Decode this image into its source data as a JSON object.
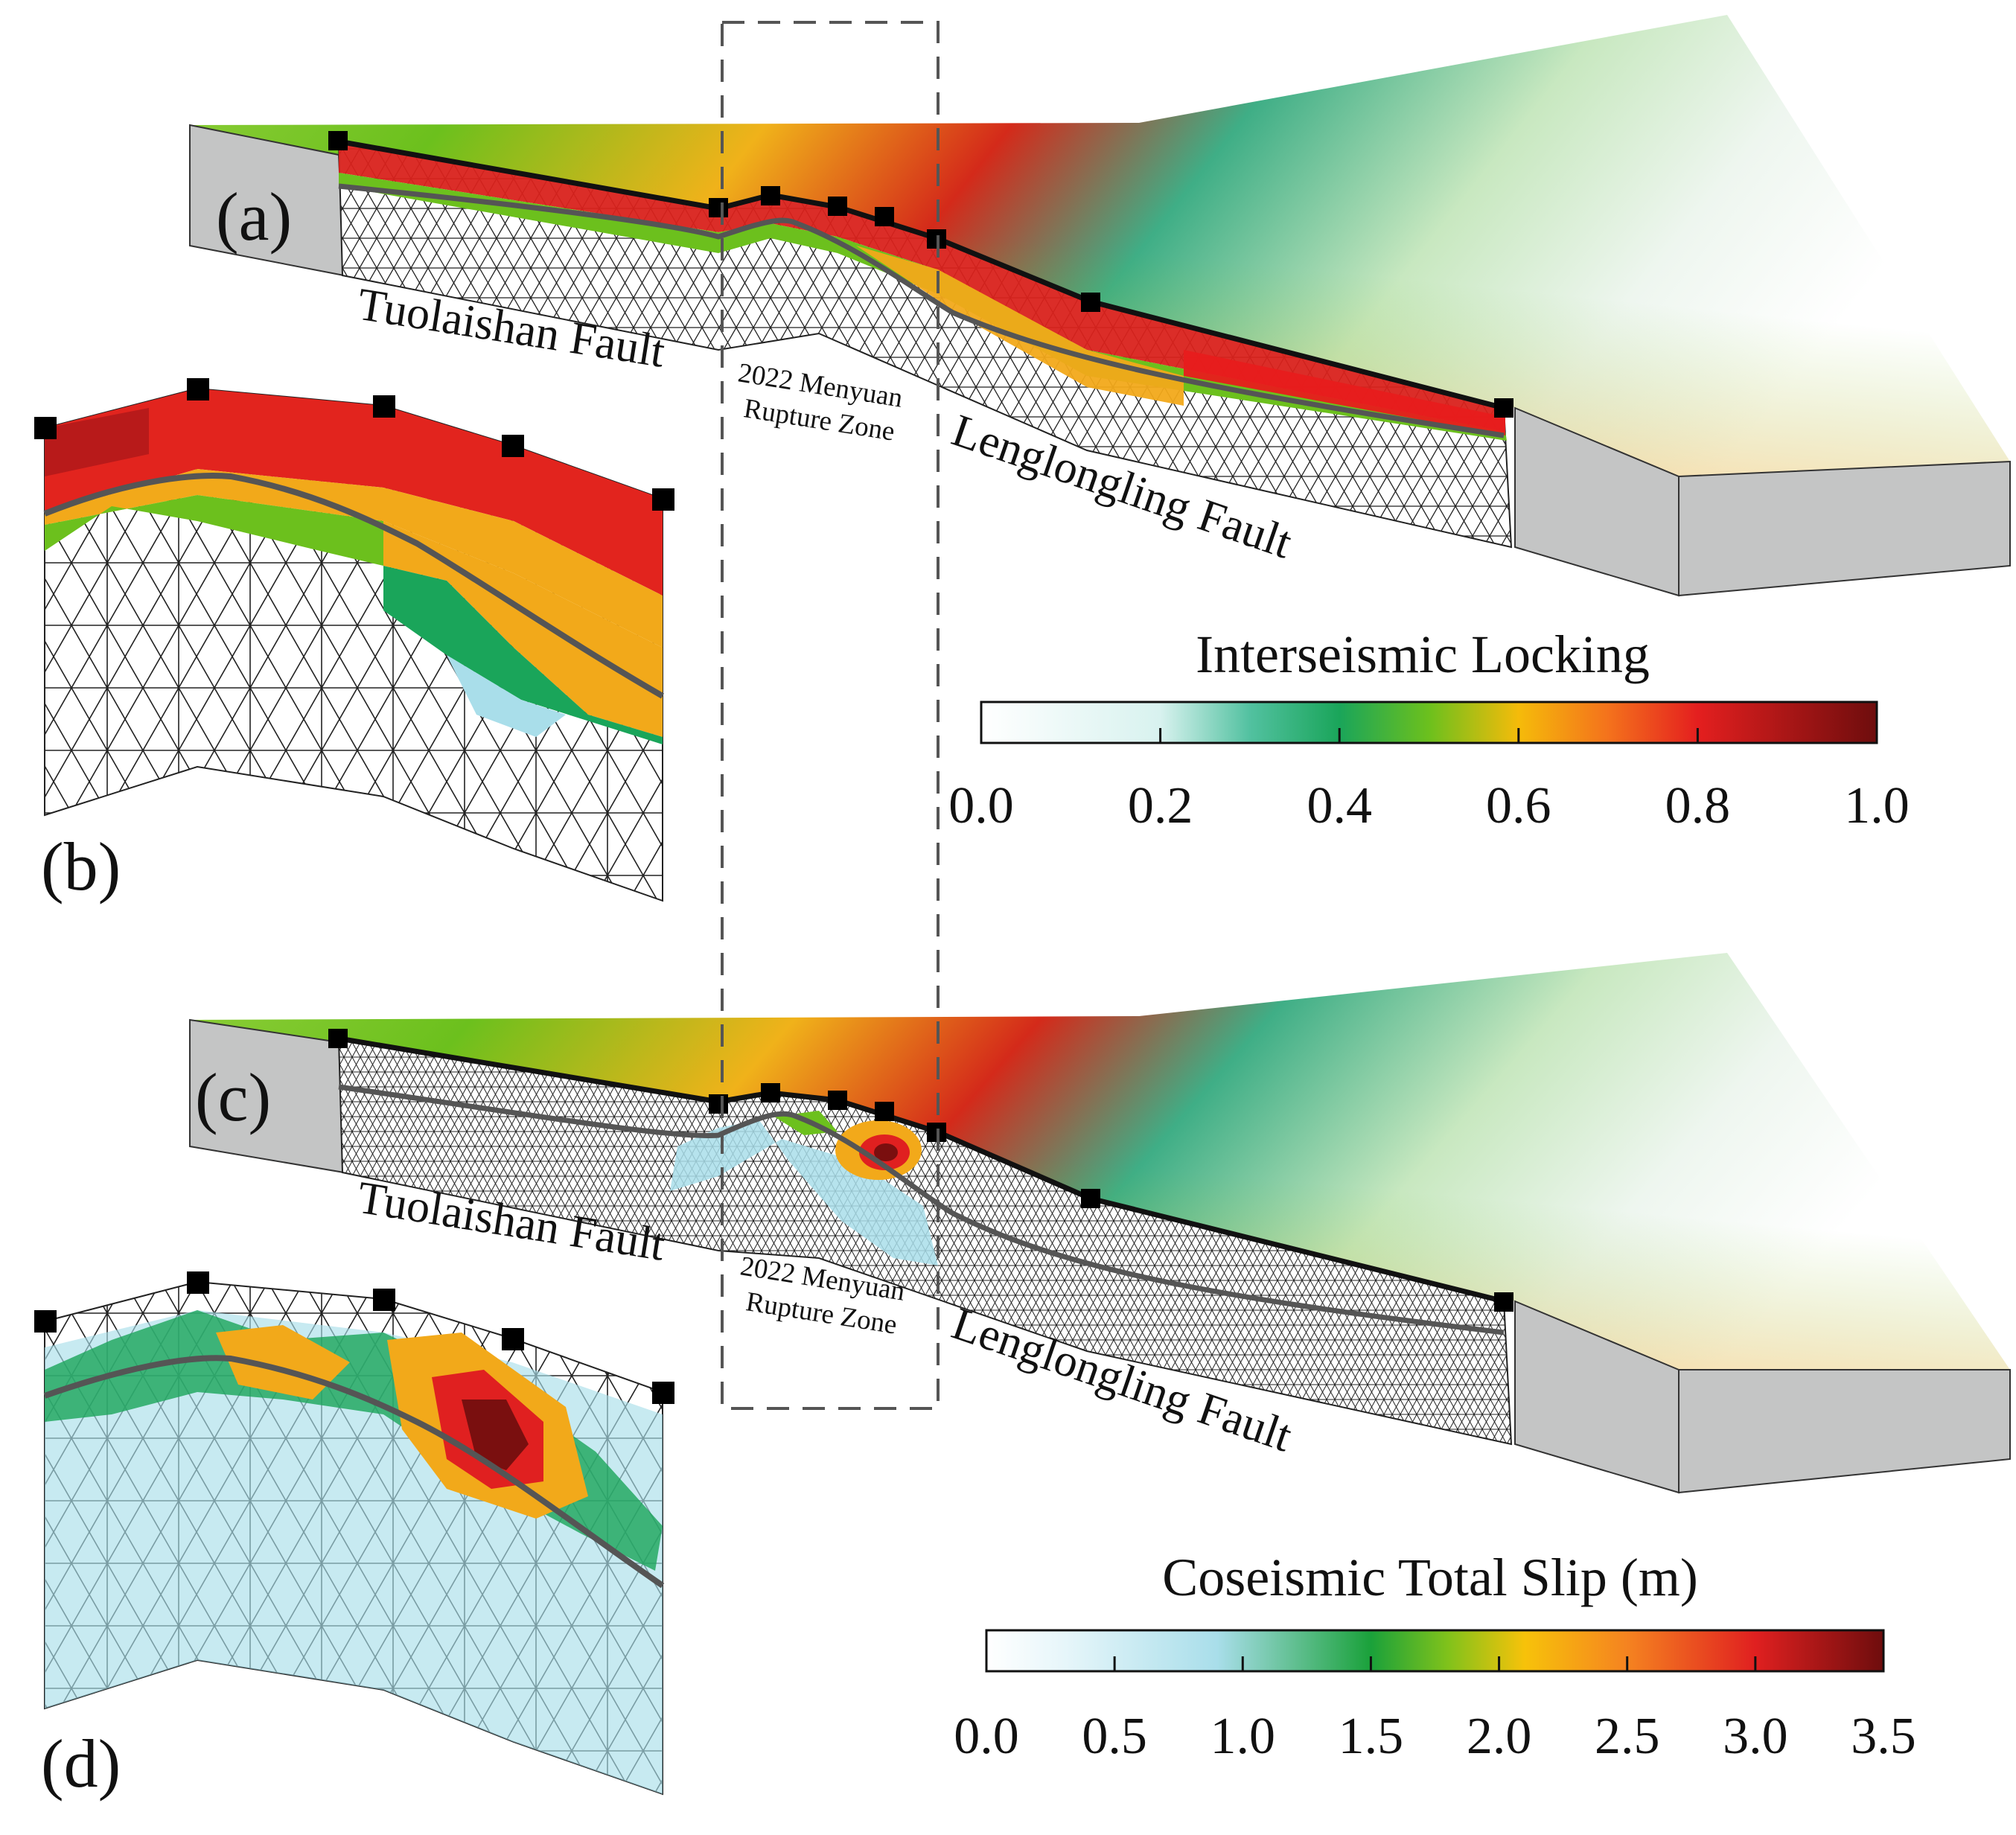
{
  "panels": {
    "a": "(a)",
    "b": "(b)",
    "c": "(c)",
    "d": "(d)"
  },
  "faults": {
    "tuolaishan": "Tuolaishan Fault",
    "lenglongling": "Lenglongling Fault"
  },
  "rupture_zone": {
    "line1": "2022 Menyuan",
    "line2": "Rupture Zone"
  },
  "colorbars": {
    "locking": {
      "title": "Interseismic Locking",
      "ticks": [
        "0.0",
        "0.2",
        "0.4",
        "0.6",
        "0.8",
        "1.0"
      ],
      "stops": [
        {
          "v": 0.0,
          "color": "#ffffff"
        },
        {
          "v": 0.2,
          "color": "#d8f2ef"
        },
        {
          "v": 0.3,
          "color": "#52c1a0"
        },
        {
          "v": 0.4,
          "color": "#1aa55a"
        },
        {
          "v": 0.5,
          "color": "#6cc01d"
        },
        {
          "v": 0.6,
          "color": "#f5bb0a"
        },
        {
          "v": 0.7,
          "color": "#f4721c"
        },
        {
          "v": 0.8,
          "color": "#e41f1f"
        },
        {
          "v": 1.0,
          "color": "#6e0d0d"
        }
      ]
    },
    "slip": {
      "title": "Coseismic Total Slip (m)",
      "ticks": [
        "0.0",
        "0.5",
        "1.0",
        "1.5",
        "2.0",
        "2.5",
        "3.0",
        "3.5"
      ],
      "stops": [
        {
          "v": 0.0,
          "color": "#ffffff"
        },
        {
          "v": 0.3,
          "color": "#e7f6fa"
        },
        {
          "v": 0.9,
          "color": "#a9deea"
        },
        {
          "v": 1.5,
          "color": "#1aa13a"
        },
        {
          "v": 1.8,
          "color": "#80c21b"
        },
        {
          "v": 2.1,
          "color": "#f7c20a"
        },
        {
          "v": 2.5,
          "color": "#f58320"
        },
        {
          "v": 3.0,
          "color": "#e02020"
        },
        {
          "v": 3.5,
          "color": "#6e0d0d"
        }
      ]
    }
  },
  "colors": {
    "terrain_high": "#d42a1a",
    "terrain_mid": "#6cc01d",
    "terrain_low": "#3fae86",
    "block_gray": "#c4c5c5",
    "fault_trace": "#111111",
    "depth_contour": "#555555"
  }
}
